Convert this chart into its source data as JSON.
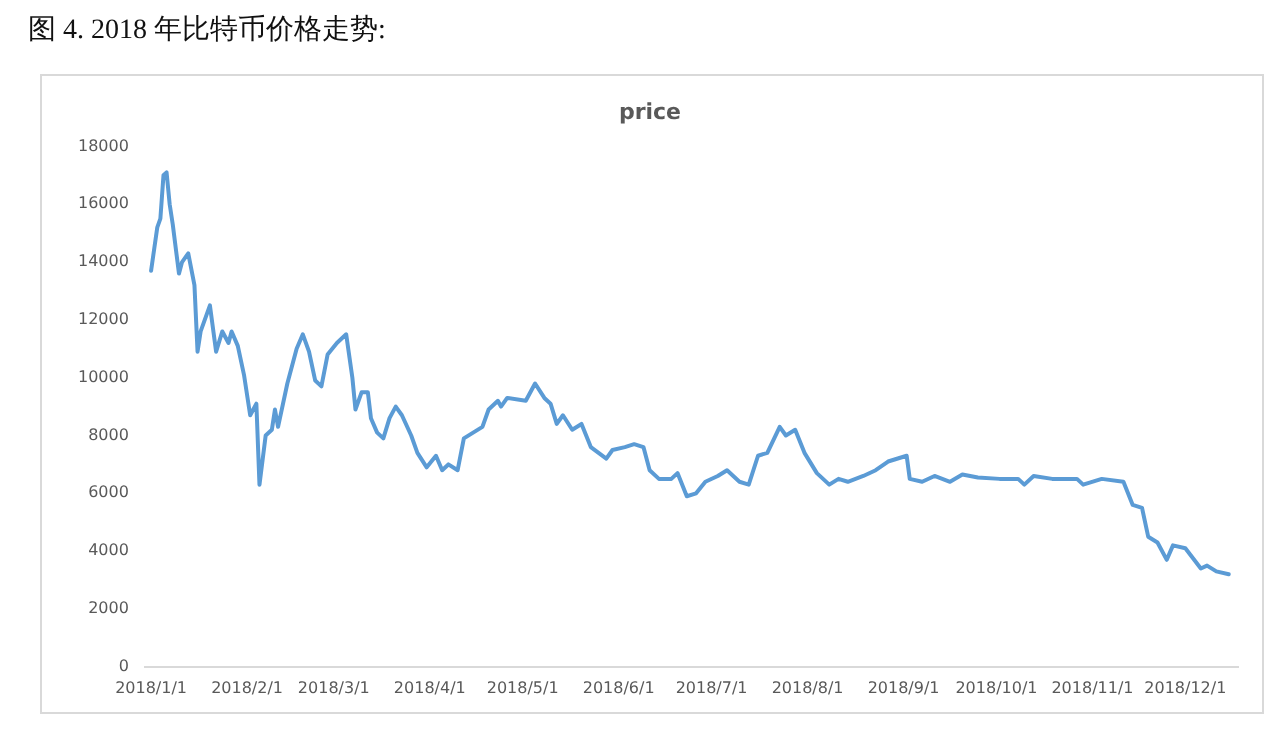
{
  "chart_data": {
    "type": "line",
    "title": "图 4. 2018 年比特币价格走势:",
    "subtitle": "price",
    "x": [
      "2018-01-01",
      "2018-01-03",
      "2018-01-04",
      "2018-01-05",
      "2018-01-06",
      "2018-01-07",
      "2018-01-08",
      "2018-01-10",
      "2018-01-11",
      "2018-01-13",
      "2018-01-15",
      "2018-01-16",
      "2018-01-17",
      "2018-01-20",
      "2018-01-22",
      "2018-01-24",
      "2018-01-26",
      "2018-01-27",
      "2018-01-29",
      "2018-01-31",
      "2018-02-02",
      "2018-02-04",
      "2018-02-05",
      "2018-02-07",
      "2018-02-09",
      "2018-02-10",
      "2018-02-11",
      "2018-02-14",
      "2018-02-17",
      "2018-02-19",
      "2018-02-21",
      "2018-02-23",
      "2018-02-25",
      "2018-02-27",
      "2018-03-02",
      "2018-03-05",
      "2018-03-07",
      "2018-03-08",
      "2018-03-10",
      "2018-03-12",
      "2018-03-13",
      "2018-03-15",
      "2018-03-17",
      "2018-03-19",
      "2018-03-21",
      "2018-03-23",
      "2018-03-26",
      "2018-03-28",
      "2018-03-31",
      "2018-04-03",
      "2018-04-05",
      "2018-04-07",
      "2018-04-10",
      "2018-04-12",
      "2018-04-15",
      "2018-04-18",
      "2018-04-20",
      "2018-04-23",
      "2018-04-24",
      "2018-04-26",
      "2018-05-02",
      "2018-05-05",
      "2018-05-08",
      "2018-05-10",
      "2018-05-12",
      "2018-05-14",
      "2018-05-17",
      "2018-05-20",
      "2018-05-23",
      "2018-05-28",
      "2018-05-30",
      "2018-06-03",
      "2018-06-06",
      "2018-06-09",
      "2018-06-11",
      "2018-06-14",
      "2018-06-18",
      "2018-06-20",
      "2018-06-23",
      "2018-06-26",
      "2018-06-29",
      "2018-07-03",
      "2018-07-06",
      "2018-07-10",
      "2018-07-13",
      "2018-07-16",
      "2018-07-19",
      "2018-07-23",
      "2018-07-25",
      "2018-07-28",
      "2018-07-31",
      "2018-08-04",
      "2018-08-08",
      "2018-08-11",
      "2018-08-14",
      "2018-08-19",
      "2018-08-23",
      "2018-08-27",
      "2018-09-02",
      "2018-09-03",
      "2018-09-07",
      "2018-09-11",
      "2018-09-16",
      "2018-09-20",
      "2018-09-25",
      "2018-10-02",
      "2018-10-08",
      "2018-10-10",
      "2018-10-13",
      "2018-10-19",
      "2018-10-27",
      "2018-10-29",
      "2018-11-04",
      "2018-11-11",
      "2018-11-14",
      "2018-11-17",
      "2018-11-19",
      "2018-11-22",
      "2018-11-25",
      "2018-11-27",
      "2018-12-01",
      "2018-12-06",
      "2018-12-08",
      "2018-12-11",
      "2018-12-15"
    ],
    "series": [
      {
        "color": "#5b9bd5",
        "values": [
          13700,
          15200,
          15500,
          17000,
          17100,
          16000,
          15300,
          13600,
          14000,
          14300,
          13200,
          10900,
          11600,
          12500,
          10900,
          11600,
          11200,
          11600,
          11100,
          10100,
          8700,
          9100,
          6300,
          8000,
          8200,
          8900,
          8300,
          9800,
          11000,
          11500,
          10900,
          9900,
          9700,
          10800,
          11200,
          11500,
          10000,
          8900,
          9500,
          9500,
          8600,
          8100,
          7900,
          8600,
          9000,
          8700,
          8000,
          7400,
          6900,
          7300,
          6800,
          7000,
          6800,
          7900,
          8100,
          8300,
          8900,
          9200,
          9000,
          9300,
          9200,
          9800,
          9300,
          9100,
          8400,
          8700,
          8200,
          8400,
          7600,
          7200,
          7500,
          7600,
          7700,
          7600,
          6800,
          6500,
          6500,
          6700,
          5900,
          6000,
          6400,
          6600,
          6800,
          6400,
          6300,
          7300,
          7400,
          8300,
          8000,
          8200,
          7400,
          6700,
          6300,
          6500,
          6400,
          6600,
          6800,
          7100,
          7300,
          6500,
          6400,
          6600,
          6400,
          6650,
          6550,
          6500,
          6500,
          6300,
          6600,
          6500,
          6500,
          6300,
          6500,
          6400,
          5600,
          5500,
          4500,
          4300,
          3700,
          4200,
          4100,
          3400,
          3500,
          3300,
          3200
        ]
      }
    ],
    "xlim": [
      "2017-12-30",
      "2018-12-18"
    ],
    "xticks": [
      {
        "value": "2018-01-01",
        "label": "2018/1/1"
      },
      {
        "value": "2018-02-01",
        "label": "2018/2/1"
      },
      {
        "value": "2018-03-01",
        "label": "2018/3/1"
      },
      {
        "value": "2018-04-01",
        "label": "2018/4/1"
      },
      {
        "value": "2018-05-01",
        "label": "2018/5/1"
      },
      {
        "value": "2018-06-01",
        "label": "2018/6/1"
      },
      {
        "value": "2018-07-01",
        "label": "2018/7/1"
      },
      {
        "value": "2018-08-01",
        "label": "2018/8/1"
      },
      {
        "value": "2018-09-01",
        "label": "2018/9/1"
      },
      {
        "value": "2018-10-01",
        "label": "2018/10/1"
      },
      {
        "value": "2018-11-01",
        "label": "2018/11/1"
      },
      {
        "value": "2018-12-01",
        "label": "2018/12/1"
      }
    ],
    "ylim": [
      0,
      18000
    ],
    "yticks": [
      0,
      2000,
      4000,
      6000,
      8000,
      10000,
      12000,
      14000,
      16000,
      18000
    ],
    "grid": false,
    "legend": false,
    "marker": "none",
    "line_style": "solid"
  }
}
